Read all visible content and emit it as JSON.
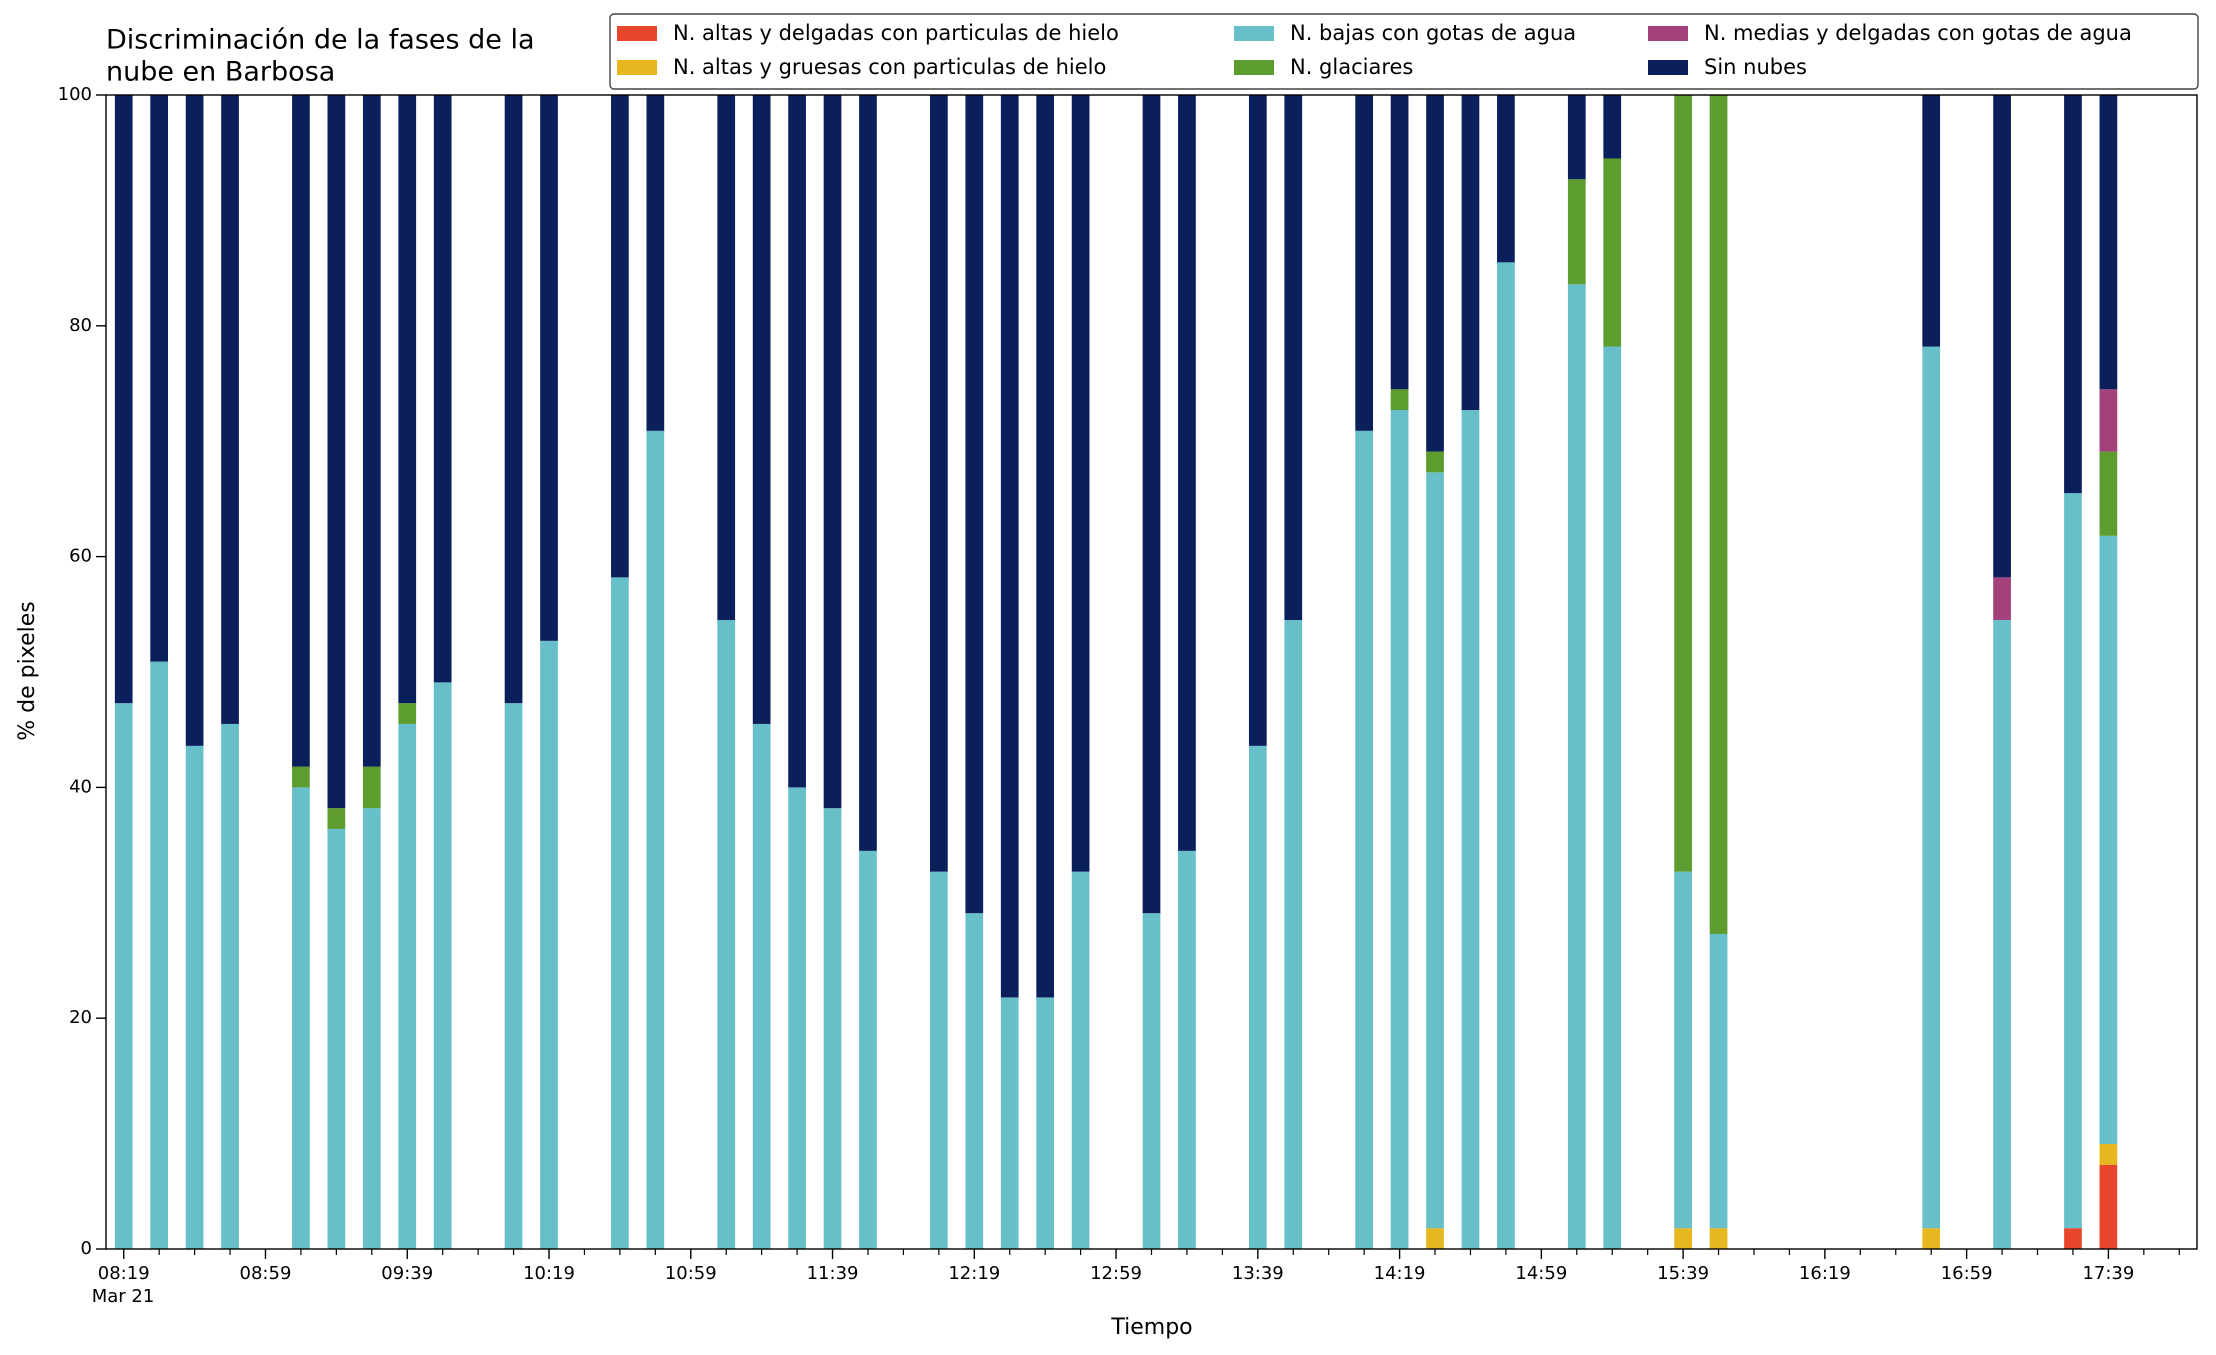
{
  "chart_data": {
    "type": "stacked_bar",
    "title": [
      "Discriminación de la fases de la",
      "nube en Barbosa"
    ],
    "xlabel": "Tiempo",
    "ylabel": "% de pixeles",
    "date": "Mar 21",
    "x": [
      "08:19",
      "08:29",
      "08:39",
      "08:49",
      "09:09",
      "09:19",
      "09:29",
      "09:39",
      "09:49",
      "10:09",
      "10:19",
      "10:39",
      "10:49",
      "11:09",
      "11:19",
      "11:29",
      "11:39",
      "11:49",
      "12:09",
      "12:19",
      "12:29",
      "12:39",
      "12:49",
      "13:09",
      "13:19",
      "13:39",
      "13:49",
      "14:09",
      "14:19",
      "14:29",
      "14:39",
      "14:49",
      "15:09",
      "15:19",
      "15:39",
      "15:49",
      "16:49",
      "17:09",
      "17:29",
      "17:39"
    ],
    "series": [
      {
        "name": "N. altas y delgadas con particulas de hielo",
        "color": "#e8462a",
        "values": [
          0,
          0,
          0,
          0,
          0,
          0,
          0,
          0,
          0,
          0,
          0,
          0,
          0,
          0,
          0,
          0,
          0,
          0,
          0,
          0,
          0,
          0,
          0,
          0,
          0,
          0,
          0,
          0,
          0,
          0,
          0,
          0,
          0,
          0,
          0,
          0,
          0,
          0,
          1.8,
          7.3
        ]
      },
      {
        "name": "N. altas y gruesas con particulas de hielo",
        "color": "#e6b71e",
        "values": [
          0,
          0,
          0,
          0,
          0,
          0,
          0,
          0,
          0,
          0,
          0,
          0,
          0,
          0,
          0,
          0,
          0,
          0,
          0,
          0,
          0,
          0,
          0,
          0,
          0,
          0,
          0,
          0,
          0,
          1.8,
          0,
          0,
          0,
          0,
          1.8,
          1.8,
          1.8,
          0,
          0,
          1.8
        ]
      },
      {
        "name": "N. bajas con gotas de agua",
        "color": "#67bfca",
        "values": [
          47.3,
          50.9,
          43.6,
          45.5,
          40,
          36.4,
          38.2,
          45.5,
          49.1,
          47.3,
          52.7,
          58.2,
          70.9,
          54.5,
          45.5,
          40,
          38.2,
          34.5,
          32.7,
          29.1,
          21.8,
          21.8,
          32.7,
          29.1,
          34.5,
          43.6,
          54.5,
          70.9,
          72.7,
          65.5,
          72.7,
          85.5,
          83.6,
          78.2,
          30.9,
          25.5,
          76.4,
          54.5,
          63.7,
          52.7
        ]
      },
      {
        "name": "N. glaciares",
        "color": "#5d9c2f",
        "values": [
          0,
          0,
          0,
          0,
          1.8,
          1.8,
          3.6,
          1.8,
          0,
          0,
          0,
          0,
          0,
          0,
          0,
          0,
          0,
          0,
          0,
          0,
          0,
          0,
          0,
          0,
          0,
          0,
          0,
          0,
          1.8,
          1.8,
          0,
          0,
          9.1,
          16.3,
          67.3,
          72.7,
          0,
          0,
          0,
          7.3
        ]
      },
      {
        "name": "N. medias y delgadas con gotas de agua",
        "color": "#a3427a",
        "values": [
          0,
          0,
          0,
          0,
          0,
          0,
          0,
          0,
          0,
          0,
          0,
          0,
          0,
          0,
          0,
          0,
          0,
          0,
          0,
          0,
          0,
          0,
          0,
          0,
          0,
          0,
          0,
          0,
          0,
          0,
          0,
          0,
          0,
          0,
          0,
          0,
          0,
          3.7,
          0,
          5.4
        ]
      },
      {
        "name": "Sin nubes",
        "color": "#0b1f5c",
        "values": [
          52.7,
          49.1,
          56.4,
          54.5,
          58.2,
          61.8,
          58.2,
          52.7,
          50.9,
          52.7,
          47.3,
          41.8,
          29.1,
          45.5,
          54.5,
          60,
          61.8,
          65.5,
          67.3,
          70.9,
          78.2,
          78.2,
          67.3,
          70.9,
          65.5,
          56.4,
          45.5,
          29.1,
          25.5,
          30.9,
          27.3,
          14.5,
          7.3,
          5.5,
          0,
          0,
          21.8,
          41.8,
          34.5,
          25.5
        ]
      }
    ],
    "xlim": [
      "08:14",
      "18:04"
    ],
    "xticks": [
      "08:19",
      "08:59",
      "09:39",
      "10:19",
      "10:59",
      "11:39",
      "12:19",
      "12:59",
      "13:39",
      "14:19",
      "14:59",
      "15:39",
      "16:19",
      "16:59",
      "17:39"
    ],
    "xminorticks": [
      "08:29",
      "08:39",
      "08:49",
      "09:09",
      "09:19",
      "09:29",
      "09:49",
      "09:59",
      "10:09",
      "10:29",
      "10:39",
      "10:49",
      "11:09",
      "11:19",
      "11:29",
      "11:49",
      "11:59",
      "12:09",
      "12:29",
      "12:39",
      "12:49",
      "13:09",
      "13:19",
      "13:29",
      "13:49",
      "13:59",
      "14:09",
      "14:29",
      "14:39",
      "14:49",
      "15:09",
      "15:19",
      "15:29",
      "15:49",
      "15:59",
      "16:09",
      "16:29",
      "16:39",
      "16:49",
      "17:09",
      "17:19",
      "17:29",
      "17:49",
      "17:59"
    ],
    "ylim": [
      0,
      100
    ],
    "yticks": [
      0,
      20,
      40,
      60,
      80,
      100
    ],
    "legend": "top-right"
  }
}
